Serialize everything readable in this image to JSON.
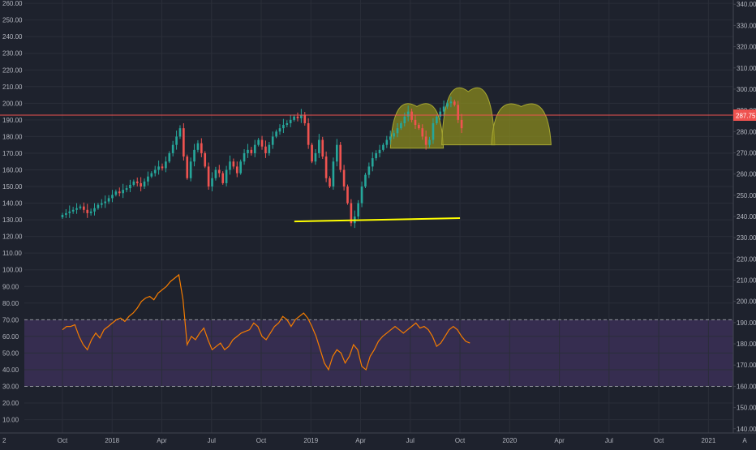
{
  "colors": {
    "background": "#1e222d",
    "grid": "#2a2e39",
    "axis_text": "#b2b5be",
    "candle_up": "#26a69a",
    "candle_down": "#ef5350",
    "price_line": "#ef5350",
    "price_badge": "#ef5350",
    "support_line": "#ffff00",
    "pattern_fill": "#8a8a1e",
    "pattern_stroke": "#a8a832",
    "rsi_line": "#f57c00",
    "rsi_band": "#3b2f57",
    "rsi_level_line": "#9598a1"
  },
  "corner_labels": {
    "bottom_left": "2",
    "bottom_right": "A"
  },
  "chart_data": [
    {
      "type": "candlestick",
      "name": "price",
      "x_axis": {
        "ticks": [
          "Oct",
          "2018",
          "Apr",
          "Jul",
          "Oct",
          "2019",
          "Apr",
          "Jul",
          "Oct",
          "2020",
          "Apr",
          "Jul",
          "Oct",
          "2021"
        ],
        "tick_months": [
          0,
          3,
          6,
          9,
          12,
          15,
          18,
          21,
          24,
          27,
          30,
          33,
          36,
          39
        ],
        "range_months": [
          -2.3,
          40.5
        ]
      },
      "left_axis": {
        "ticks": [
          "260.00",
          "250.00",
          "240.00",
          "230.00",
          "220.00",
          "210.00",
          "200.00",
          "190.00",
          "180.00",
          "170.00",
          "160.00",
          "150.00",
          "140.00",
          "130.00",
          "120.00",
          "110.00",
          "100.00",
          "90.00",
          "80.00",
          "70.00",
          "60.00",
          "50.00",
          "40.00",
          "30.00",
          "20.00",
          "10.00"
        ],
        "range": [
          2,
          262
        ]
      },
      "right_axis": {
        "ticks": [
          "340.00",
          "330.00",
          "320.00",
          "310.00",
          "300.00",
          "290.00",
          "280.00",
          "270.00",
          "260.00",
          "250.00",
          "240.00",
          "230.00",
          "220.00",
          "210.00",
          "200.00",
          "190.00",
          "180.00",
          "170.00",
          "160.00",
          "150.00",
          "140.00"
        ],
        "range": [
          138,
          342
        ]
      },
      "last_price": {
        "label": "287.75",
        "value": 287.75
      },
      "weekly_closes": [
        133,
        134,
        135,
        136,
        137,
        138,
        136,
        134,
        135,
        137,
        139,
        140,
        141,
        143,
        145,
        147,
        146,
        148,
        149,
        151,
        153,
        152,
        150,
        153,
        156,
        158,
        160,
        162,
        161,
        165,
        170,
        175,
        180,
        185,
        168,
        155,
        165,
        172,
        176,
        170,
        162,
        150,
        155,
        160,
        158,
        152,
        160,
        165,
        162,
        158,
        165,
        170,
        172,
        170,
        175,
        178,
        174,
        170,
        175,
        180,
        183,
        185,
        187,
        188,
        190,
        192,
        191,
        193,
        188,
        175,
        165,
        170,
        178,
        168,
        155,
        150,
        165,
        175,
        160,
        150,
        140,
        128,
        132,
        140,
        150,
        157,
        162,
        167,
        170,
        172,
        175,
        178,
        180,
        182,
        185,
        188,
        192,
        195,
        190,
        187,
        185,
        180,
        175,
        178,
        188,
        192,
        195,
        198,
        200,
        201,
        199,
        190,
        185
      ],
      "annotations": {
        "support_line": {
          "from": [
            14.0,
            129
          ],
          "to": [
            24.0,
            131
          ]
        },
        "head_and_shoulders": [
          {
            "x_start": 19.8,
            "x_end": 23.0,
            "base": 173,
            "peak": 198
          },
          {
            "x_start": 22.9,
            "x_end": 26.1,
            "base": 175,
            "peak": 207
          },
          {
            "x_start": 25.9,
            "x_end": 29.5,
            "base": 175,
            "peak": 198
          }
        ]
      }
    },
    {
      "type": "line",
      "name": "rsi",
      "band": [
        30,
        70
      ],
      "levels": [
        30,
        70
      ],
      "values": [
        64,
        66,
        66,
        67,
        60,
        55,
        52,
        58,
        62,
        59,
        64,
        66,
        68,
        70,
        71,
        69,
        72,
        74,
        77,
        81,
        83,
        84,
        82,
        86,
        88,
        90,
        93,
        95,
        97,
        82,
        55,
        60,
        58,
        62,
        65,
        58,
        52,
        54,
        56,
        52,
        54,
        58,
        60,
        62,
        63,
        64,
        68,
        66,
        60,
        58,
        62,
        66,
        68,
        72,
        70,
        66,
        70,
        72,
        74,
        71,
        66,
        60,
        52,
        44,
        40,
        48,
        52,
        50,
        44,
        48,
        55,
        52,
        42,
        40,
        48,
        52,
        57,
        60,
        62,
        64,
        66,
        64,
        62,
        64,
        66,
        68,
        65,
        66,
        64,
        60,
        54,
        56,
        60,
        64,
        66,
        64,
        60,
        57,
        56
      ]
    }
  ]
}
